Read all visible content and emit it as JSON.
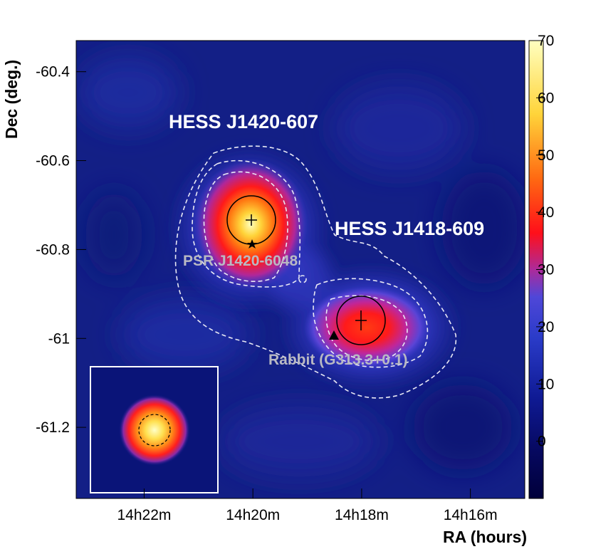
{
  "chart_data": {
    "type": "heatmap",
    "xlabel": "RA (hours)",
    "ylabel": "Dec (deg.)",
    "x_axis": {
      "direction": "decreasing",
      "ticks": [
        {
          "value": 22,
          "label": "14h22m"
        },
        {
          "value": 20,
          "label": "14h20m"
        },
        {
          "value": 18,
          "label": "14h18m"
        },
        {
          "value": 16,
          "label": "14h16m"
        }
      ],
      "range_minutes": [
        23.25,
        15.0
      ]
    },
    "y_axis": {
      "ticks": [
        {
          "value": -60.4,
          "label": "-60.4"
        },
        {
          "value": -60.6,
          "label": "-60.6"
        },
        {
          "value": -60.8,
          "label": "-60.8"
        },
        {
          "value": -61.0,
          "label": "-61"
        },
        {
          "value": -61.2,
          "label": "-61.2"
        }
      ],
      "range": [
        -61.36,
        -60.33
      ]
    },
    "colorbar": {
      "range": [
        -10,
        70
      ],
      "ticks": [
        "70",
        "60",
        "50",
        "40",
        "30",
        "20",
        "10",
        "0"
      ],
      "palette": [
        "#00003a",
        "#0b0f70",
        "#2a3bc8",
        "#4f47d8",
        "#ad2a9a",
        "#ff0f1a",
        "#ff6a12",
        "#ffd43a",
        "#ffffc0"
      ]
    },
    "sources": [
      {
        "label": "HESS J1420-607",
        "ra_min": 19.85,
        "dec": -60.75,
        "peak": 70
      },
      {
        "label": "HESS J1418-609",
        "ra_min": 17.8,
        "dec": -60.97,
        "peak": 42
      }
    ],
    "counterparts": [
      {
        "label": "PSR J1420-6048",
        "marker": "star",
        "ra_min": 19.87,
        "dec": -60.8
      },
      {
        "label": "Rabbit (G313.3+0.1)",
        "marker": "triangle",
        "ra_min": 18.35,
        "dec": -61.01
      }
    ],
    "inset": "PSF",
    "grid": false,
    "legend": "none"
  }
}
